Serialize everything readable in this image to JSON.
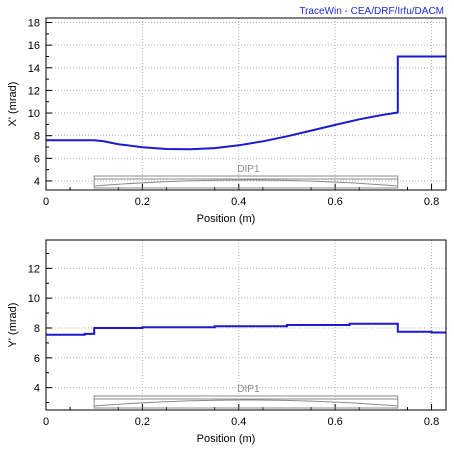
{
  "credit": "TraceWin - CEA/DRF/Irfu/DACM",
  "colors": {
    "trace": "#1a1ad0",
    "grid": "#b0b0b0",
    "element": "#8a8a8a",
    "frame": "#000000",
    "credit": "#1f2bd6"
  },
  "chart_data": [
    {
      "type": "line",
      "title": "",
      "xlabel": "Position (m)",
      "ylabel": "X' (mrad)",
      "xlim": [
        0,
        0.83
      ],
      "ylim": [
        3.2,
        18.4
      ],
      "xticks": [
        "0",
        "0.2",
        "0.4",
        "0.6",
        "0.8"
      ],
      "yticks": [
        "4",
        "6",
        "8",
        "10",
        "12",
        "14",
        "16",
        "18"
      ],
      "grid": true,
      "series": [
        {
          "x": [
            0,
            0.1,
            0.12,
            0.15,
            0.2,
            0.25,
            0.3,
            0.35,
            0.4,
            0.45,
            0.5,
            0.55,
            0.6,
            0.65,
            0.7,
            0.73,
            0.73,
            0.83
          ],
          "y": [
            7.6,
            7.6,
            7.5,
            7.25,
            6.98,
            6.82,
            6.8,
            6.9,
            7.15,
            7.5,
            7.95,
            8.45,
            8.95,
            9.45,
            9.85,
            10.05,
            15.0,
            15.0
          ]
        }
      ],
      "element": {
        "name": "DIP1",
        "x_start": 0.1,
        "x_end": 0.73
      }
    },
    {
      "type": "line",
      "title": "",
      "xlabel": "Position (m)",
      "ylabel": "Y' (mrad)",
      "xlim": [
        0,
        0.83
      ],
      "ylim": [
        2.5,
        13.9
      ],
      "xticks": [
        "0",
        "0.2",
        "0.4",
        "0.6",
        "0.8"
      ],
      "yticks": [
        "4",
        "6",
        "8",
        "10",
        "12"
      ],
      "grid": true,
      "series": [
        {
          "x": [
            0,
            0.08,
            0.08,
            0.1,
            0.1,
            0.2,
            0.2,
            0.35,
            0.35,
            0.5,
            0.5,
            0.63,
            0.63,
            0.73,
            0.73,
            0.8,
            0.8,
            0.83
          ],
          "y": [
            7.55,
            7.55,
            7.6,
            7.6,
            8.0,
            8.0,
            8.05,
            8.05,
            8.12,
            8.12,
            8.2,
            8.2,
            8.28,
            8.28,
            7.75,
            7.75,
            7.7,
            7.7
          ]
        }
      ],
      "element": {
        "name": "DIP1",
        "x_start": 0.1,
        "x_end": 0.73
      }
    }
  ]
}
